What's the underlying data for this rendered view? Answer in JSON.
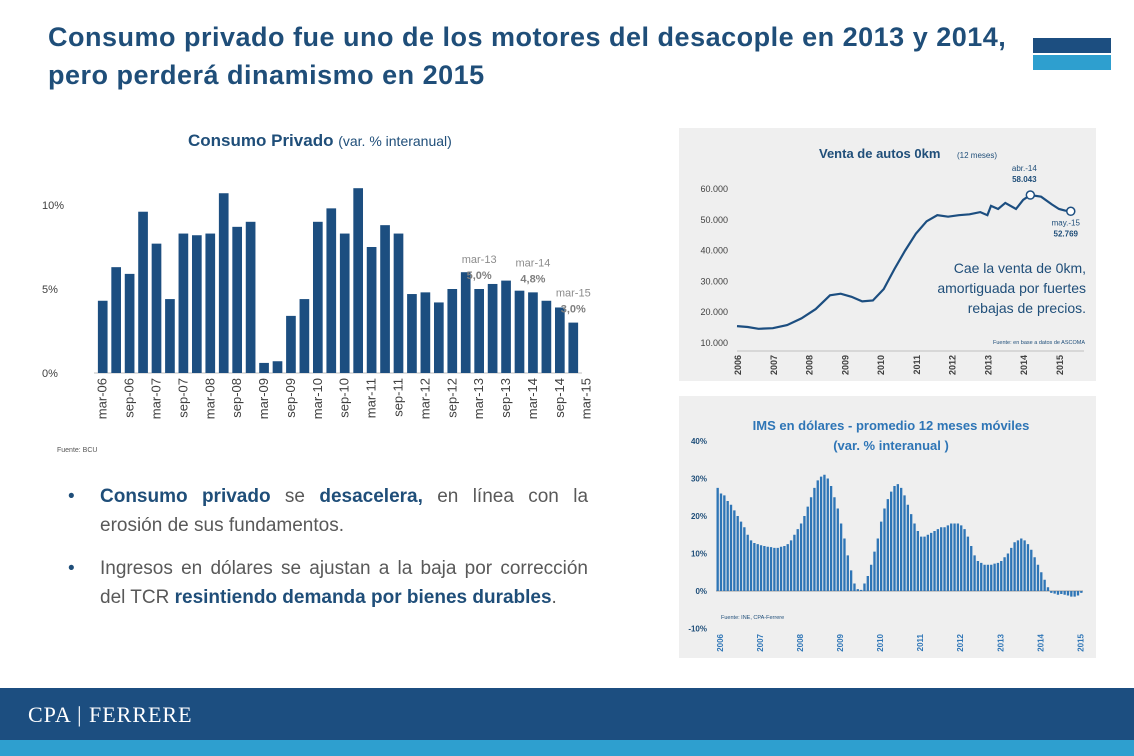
{
  "title": "Consumo privado fue uno de los motores del desacople en 2013 y 2014, pero perderá dinamismo en 2015",
  "colors": {
    "navy": "#1f4e79",
    "bar": "#1c4e80",
    "footer": "#1c4e80",
    "accent": "#2e9fcf",
    "light_bar": "#2e75b6"
  },
  "chart_data": [
    {
      "type": "bar",
      "title": "Consumo Privado",
      "subtitle": "(var. % interanual)",
      "source": "Fuente: BCU",
      "yticks": [
        "0%",
        "5%",
        "10%"
      ],
      "ylim": [
        0,
        11
      ],
      "x_tick_labels": [
        "mar-06",
        "sep-06",
        "mar-07",
        "sep-07",
        "mar-08",
        "sep-08",
        "mar-09",
        "sep-09",
        "mar-10",
        "sep-10",
        "mar-11",
        "sep-11",
        "mar-12",
        "sep-12",
        "mar-13",
        "sep-13",
        "mar-14",
        "sep-14",
        "mar-15"
      ],
      "values": [
        4.3,
        6.3,
        5.9,
        9.6,
        7.7,
        4.4,
        8.3,
        8.2,
        8.3,
        10.7,
        8.7,
        9.0,
        0.6,
        0.7,
        3.4,
        4.4,
        9.0,
        9.8,
        8.3,
        11.0,
        7.5,
        8.8,
        8.3,
        4.7,
        4.8,
        4.2,
        5.0,
        6.0,
        5.0,
        5.3,
        5.5,
        4.9,
        4.8,
        4.3,
        3.9,
        3.0
      ],
      "annotations": [
        {
          "index": 28,
          "date": "mar-13",
          "value": "5,0%"
        },
        {
          "index": 32,
          "date": "mar-14",
          "value": "4,8%"
        },
        {
          "index": 35,
          "date": "mar-15",
          "value": "3,0%"
        }
      ]
    },
    {
      "type": "line",
      "title": "Venta de autos 0km",
      "subtitle": "(12 meses)",
      "source": "Fuente: en base a datos de ASCOMA",
      "yticks": [
        "10.000",
        "20.000",
        "30.000",
        "40.000",
        "50.000",
        "60.000"
      ],
      "ylim": [
        10000,
        60000
      ],
      "x_tick_labels": [
        "2006",
        "2007",
        "2008",
        "2009",
        "2010",
        "2011",
        "2012",
        "2013",
        "2014",
        "2015"
      ],
      "xlim": [
        2006,
        2015.7
      ],
      "x": [
        2006.0,
        2006.3,
        2006.6,
        2007.0,
        2007.4,
        2007.8,
        2008.2,
        2008.6,
        2008.9,
        2009.2,
        2009.5,
        2009.8,
        2010.1,
        2010.4,
        2010.7,
        2011.0,
        2011.3,
        2011.6,
        2011.9,
        2012.2,
        2012.5,
        2012.8,
        2013.0,
        2013.1,
        2013.3,
        2013.5,
        2013.8,
        2014.0,
        2014.2,
        2014.5,
        2014.8,
        2015.0,
        2015.17,
        2015.33
      ],
      "y": [
        15500,
        15200,
        14600,
        14800,
        15800,
        18000,
        21000,
        25500,
        26000,
        25000,
        23500,
        23800,
        27500,
        34000,
        40000,
        45500,
        49500,
        51500,
        51000,
        51500,
        51800,
        52500,
        51500,
        54500,
        53500,
        55500,
        53500,
        56500,
        58043,
        57500,
        55000,
        53500,
        53000,
        52769
      ],
      "annotations": [
        {
          "label": "abr.-14",
          "value": "58.043",
          "x": 2014.2,
          "y": 58043
        },
        {
          "label": "may.-15",
          "value": "52.769",
          "x": 2015.33,
          "y": 52769
        }
      ],
      "note": "Cae la venta de 0km, amortiguada por fuertes rebajas de precios."
    },
    {
      "type": "bar",
      "title": "IMS en dólares - promedio 12 meses móviles",
      "subtitle": "(var. % interanual )",
      "source": "Fuente: INE, CPA-Ferrere",
      "yticks": [
        "-10%",
        "0%",
        "10%",
        "20%",
        "30%",
        "40%"
      ],
      "ylim": [
        -10,
        40
      ],
      "x_tick_labels": [
        "2006",
        "2007",
        "2008",
        "2009",
        "2010",
        "2011",
        "2012",
        "2013",
        "2014",
        "2015"
      ],
      "values": [
        27.5,
        26,
        25.5,
        24,
        23,
        21.5,
        20,
        18.5,
        17,
        15,
        13.5,
        12.8,
        12.5,
        12.2,
        12.0,
        11.8,
        11.7,
        11.5,
        11.5,
        11.8,
        12.0,
        12.5,
        13.5,
        15.0,
        16.5,
        18.0,
        20.0,
        22.5,
        25.0,
        27.5,
        29.5,
        30.5,
        31.0,
        30.0,
        28.0,
        25.0,
        22.0,
        18.0,
        14.0,
        9.5,
        5.5,
        2.0,
        0.5,
        0.3,
        2.0,
        4.0,
        7.0,
        10.5,
        14.0,
        18.5,
        22.0,
        24.5,
        26.5,
        28.0,
        28.5,
        27.5,
        25.5,
        23.0,
        20.5,
        18.0,
        16.0,
        14.5,
        14.5,
        15.0,
        15.5,
        16.0,
        16.5,
        17.0,
        17.0,
        17.5,
        18.0,
        18.0,
        18.0,
        17.5,
        16.5,
        14.5,
        12.0,
        9.5,
        8.0,
        7.5,
        7.0,
        7.0,
        7.0,
        7.3,
        7.5,
        8.0,
        9.0,
        10.0,
        11.5,
        13.0,
        13.5,
        14.0,
        13.5,
        12.5,
        11.0,
        9.0,
        7.0,
        5.0,
        3.0,
        1.0,
        -0.5,
        -0.7,
        -1.0,
        -0.8,
        -1.0,
        -1.2,
        -1.5,
        -1.5,
        -1.2,
        -0.5
      ]
    }
  ],
  "bullets": [
    {
      "parts": [
        {
          "t": "Consumo privado",
          "hl": true
        },
        {
          "t": " se ",
          "hl": false
        },
        {
          "t": "desacelera,",
          "hl": true
        },
        {
          "t": " en línea con la erosión de sus fundamentos.",
          "hl": false
        }
      ]
    },
    {
      "parts": [
        {
          "t": "Ingresos en dólares se ajustan a la baja por corrección del TCR ",
          "hl": false
        },
        {
          "t": "resintiendo demanda por bienes durables",
          "hl": true
        },
        {
          "t": ".",
          "hl": false
        }
      ]
    }
  ],
  "footer": {
    "logo": "CPA | FERRERE"
  }
}
